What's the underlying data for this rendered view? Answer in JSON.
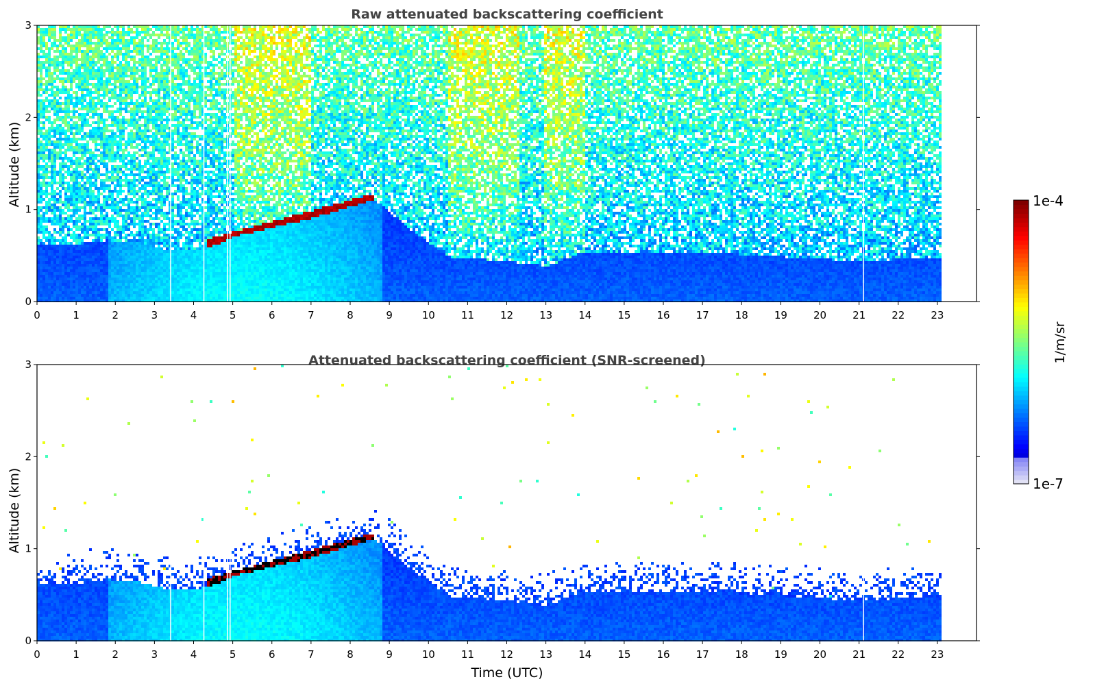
{
  "chart_data": [
    {
      "type": "heatmap",
      "title": "Raw attenuated backscattering coefficient",
      "xlabel": "",
      "ylabel": "Altitude (km)",
      "xlim": [
        0,
        24
      ],
      "ylim": [
        0,
        3
      ],
      "x_ticks": [
        "0",
        "1",
        "2",
        "3",
        "4",
        "5",
        "6",
        "7",
        "8",
        "9",
        "10",
        "11",
        "12",
        "13",
        "14",
        "15",
        "16",
        "17",
        "18",
        "19",
        "20",
        "21",
        "22",
        "23"
      ],
      "y_ticks": [
        "0",
        "1",
        "2",
        "3"
      ],
      "data_extent_hours": [
        0,
        23.1
      ],
      "boundary_layer_top_km": {
        "hours": [
          0,
          1,
          1.8,
          2.5,
          3.3,
          4.0,
          4.5,
          5.0,
          6.0,
          7.0,
          8.0,
          8.6,
          9.5,
          10.5,
          12.0,
          13.0,
          13.9,
          15,
          17,
          19,
          21,
          23.1
        ],
        "km": [
          0.62,
          0.64,
          0.68,
          0.66,
          0.58,
          0.57,
          0.62,
          0.72,
          0.82,
          0.92,
          1.05,
          1.12,
          0.8,
          0.5,
          0.45,
          0.4,
          0.55,
          0.55,
          0.55,
          0.5,
          0.45,
          0.5
        ]
      },
      "cloud_layer": {
        "start_hour": 4.3,
        "end_hour": 8.6,
        "base_km_start": 0.6,
        "base_km_end": 1.1
      },
      "gaps_hours": [
        3.4,
        4.25,
        4.85,
        4.92,
        21.1
      ]
    },
    {
      "type": "heatmap",
      "title": "Attenuated backscattering coefficient (SNR-screened)",
      "xlabel": "Time (UTC)",
      "ylabel": "Altitude (km)",
      "xlim": [
        0,
        24
      ],
      "ylim": [
        0,
        3
      ],
      "x_ticks": [
        "0",
        "1",
        "2",
        "3",
        "4",
        "5",
        "6",
        "7",
        "8",
        "9",
        "10",
        "11",
        "12",
        "13",
        "14",
        "15",
        "16",
        "17",
        "18",
        "19",
        "20",
        "21",
        "22",
        "23"
      ],
      "y_ticks": [
        "0",
        "1",
        "2",
        "3"
      ],
      "data_extent_hours": [
        0,
        23.1
      ]
    }
  ],
  "colorbar": {
    "label": "1/m/sr",
    "min_label": "1e-7",
    "max_label": "1e-4",
    "scale": "log",
    "colormap": "jet"
  }
}
